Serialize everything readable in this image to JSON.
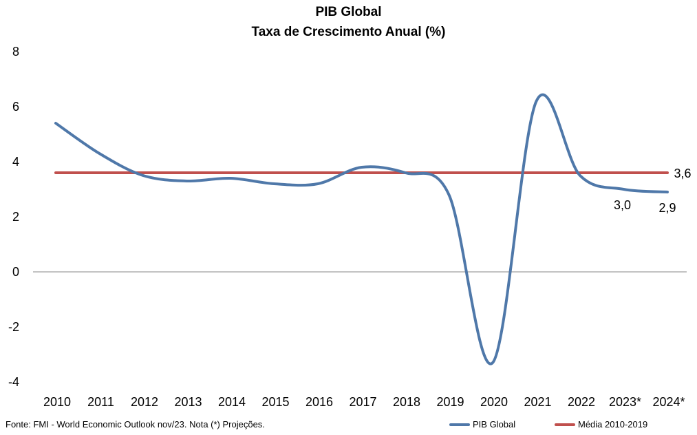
{
  "chart_data": {
    "type": "line",
    "title": "PIB Global",
    "subtitle": "Taxa de Crescimento Anual (%)",
    "categories": [
      "2010",
      "2011",
      "2012",
      "2013",
      "2014",
      "2015",
      "2016",
      "2017",
      "2018",
      "2019",
      "2020",
      "2021",
      "2022",
      "2023*",
      "2024*"
    ],
    "yticks": [
      "8",
      "6",
      "4",
      "2",
      "0",
      "-2",
      "-4"
    ],
    "ylim": [
      -4,
      8
    ],
    "series": [
      {
        "name": "PIB Global",
        "color": "#4f78a9",
        "values": [
          5.4,
          4.3,
          3.5,
          3.3,
          3.4,
          3.2,
          3.2,
          3.8,
          3.6,
          2.8,
          -3.3,
          6.2,
          3.5,
          3.0,
          2.9
        ]
      },
      {
        "name": "Média 2010-2019",
        "color": "#c0504d",
        "values": [
          3.6,
          3.6,
          3.6,
          3.6,
          3.6,
          3.6,
          3.6,
          3.6,
          3.6,
          3.6,
          3.6,
          3.6,
          3.6,
          3.6,
          3.6
        ]
      }
    ],
    "data_labels": [
      {
        "category": "2023*",
        "series": "PIB Global",
        "text": "3,0"
      },
      {
        "category": "2024*",
        "series": "PIB Global",
        "text": "2,9"
      },
      {
        "category": "2024*",
        "series": "Média 2010-2019",
        "text": "3,6"
      }
    ],
    "grid": false,
    "legend": "bottom-right"
  },
  "footer": {
    "source": "Fonte: FMI - World Economic Outlook nov/23. Nota (*) Projeções."
  }
}
